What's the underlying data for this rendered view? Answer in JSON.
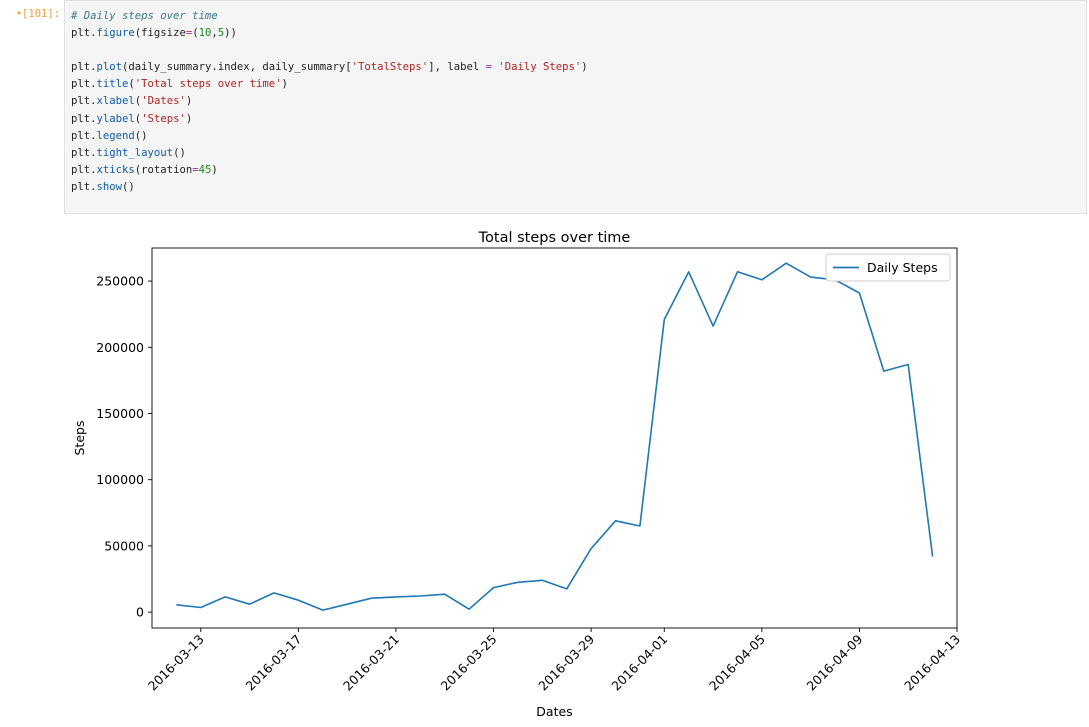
{
  "cell": {
    "prompt": "•[101]:",
    "code_lines": [
      [
        {
          "t": "comment",
          "s": "# Daily steps over time"
        }
      ],
      [
        {
          "t": "plain",
          "s": "plt."
        },
        {
          "t": "fn",
          "s": "figure"
        },
        {
          "t": "plain",
          "s": "(figsize"
        },
        {
          "t": "kw",
          "s": "="
        },
        {
          "t": "plain",
          "s": "("
        },
        {
          "t": "number",
          "s": "10"
        },
        {
          "t": "plain",
          "s": ","
        },
        {
          "t": "number",
          "s": "5"
        },
        {
          "t": "plain",
          "s": "))"
        }
      ],
      [],
      [
        {
          "t": "plain",
          "s": "plt."
        },
        {
          "t": "fn",
          "s": "plot"
        },
        {
          "t": "plain",
          "s": "(daily_summary.index, daily_summary["
        },
        {
          "t": "string",
          "s": "'TotalSteps'"
        },
        {
          "t": "plain",
          "s": "], label "
        },
        {
          "t": "kw",
          "s": "="
        },
        {
          "t": "plain",
          "s": " "
        },
        {
          "t": "string",
          "s": "'Daily Steps'"
        },
        {
          "t": "plain",
          "s": ")"
        }
      ],
      [
        {
          "t": "plain",
          "s": "plt."
        },
        {
          "t": "fn",
          "s": "title"
        },
        {
          "t": "plain",
          "s": "("
        },
        {
          "t": "string",
          "s": "'Total steps over time'"
        },
        {
          "t": "plain",
          "s": ")"
        }
      ],
      [
        {
          "t": "plain",
          "s": "plt."
        },
        {
          "t": "fn",
          "s": "xlabel"
        },
        {
          "t": "plain",
          "s": "("
        },
        {
          "t": "string",
          "s": "'Dates'"
        },
        {
          "t": "plain",
          "s": ")"
        }
      ],
      [
        {
          "t": "plain",
          "s": "plt."
        },
        {
          "t": "fn",
          "s": "ylabel"
        },
        {
          "t": "plain",
          "s": "("
        },
        {
          "t": "string",
          "s": "'Steps'"
        },
        {
          "t": "plain",
          "s": ")"
        }
      ],
      [
        {
          "t": "plain",
          "s": "plt."
        },
        {
          "t": "fn",
          "s": "legend"
        },
        {
          "t": "plain",
          "s": "()"
        }
      ],
      [
        {
          "t": "plain",
          "s": "plt."
        },
        {
          "t": "fn",
          "s": "tight_layout"
        },
        {
          "t": "plain",
          "s": "()"
        }
      ],
      [
        {
          "t": "plain",
          "s": "plt."
        },
        {
          "t": "fn",
          "s": "xticks"
        },
        {
          "t": "plain",
          "s": "(rotation"
        },
        {
          "t": "kw",
          "s": "="
        },
        {
          "t": "number",
          "s": "45"
        },
        {
          "t": "plain",
          "s": ")"
        }
      ],
      [
        {
          "t": "plain",
          "s": "plt."
        },
        {
          "t": "fn",
          "s": "show"
        },
        {
          "t": "plain",
          "s": "()"
        }
      ]
    ]
  },
  "chart_data": {
    "type": "line",
    "title": "Total steps over time",
    "xlabel": "Dates",
    "ylabel": "Steps",
    "x_ticks": [
      "2016-03-13",
      "2016-03-17",
      "2016-03-21",
      "2016-03-25",
      "2016-03-29",
      "2016-04-01",
      "2016-04-05",
      "2016-04-09",
      "2016-04-13"
    ],
    "y_ticks": [
      0,
      50000,
      100000,
      150000,
      200000,
      250000
    ],
    "ylim": [
      -12000,
      275000
    ],
    "xlim": [
      "2016-03-11",
      "2016-04-13"
    ],
    "legend_position": "top-right",
    "grid": false,
    "line_color": "#1f77b4",
    "series": [
      {
        "name": "Daily Steps",
        "x": [
          "2016-03-12",
          "2016-03-13",
          "2016-03-14",
          "2016-03-15",
          "2016-03-16",
          "2016-03-17",
          "2016-03-18",
          "2016-03-19",
          "2016-03-20",
          "2016-03-21",
          "2016-03-22",
          "2016-03-23",
          "2016-03-24",
          "2016-03-25",
          "2016-03-26",
          "2016-03-27",
          "2016-03-28",
          "2016-03-29",
          "2016-03-30",
          "2016-03-31",
          "2016-04-01",
          "2016-04-02",
          "2016-04-03",
          "2016-04-04",
          "2016-04-05",
          "2016-04-06",
          "2016-04-07",
          "2016-04-08",
          "2016-04-09",
          "2016-04-10",
          "2016-04-11",
          "2016-04-12"
        ],
        "values": [
          5500,
          3500,
          11500,
          6000,
          14500,
          9000,
          1500,
          6000,
          10500,
          11500,
          12200,
          13500,
          2200,
          18500,
          22500,
          24000,
          17500,
          48000,
          69000,
          65000,
          221000,
          257000,
          216000,
          257000,
          251000,
          263500,
          253000,
          251000,
          241000,
          182000,
          187000,
          42000
        ]
      }
    ]
  }
}
